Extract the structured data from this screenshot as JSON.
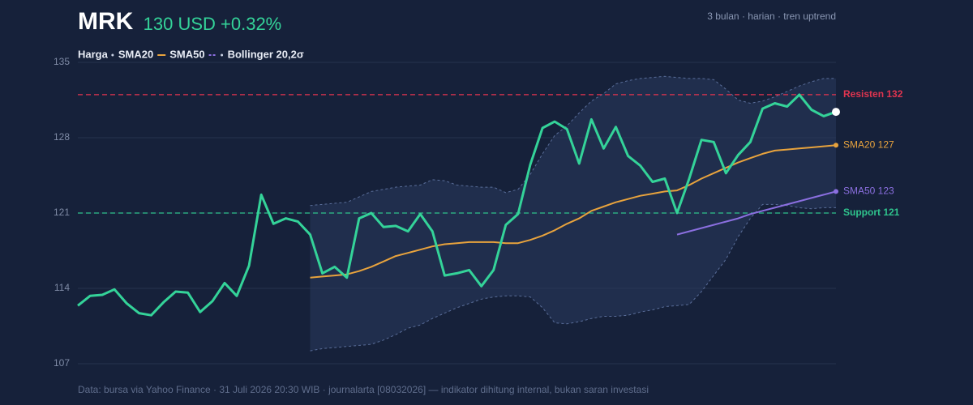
{
  "chart_data": {
    "type": "line",
    "title": "MRK",
    "subtitle": "130 USD +0.32%",
    "note": "3 bulan · harian · tren uptrend",
    "footer": "Data: bursa via Yahoo Finance · 31 Juli 2026 20:30 WIB · journalarta [08032026] — indikator dihitung internal, bukan saran investasi",
    "ylim": [
      107,
      135
    ],
    "yticks": [
      107,
      114,
      121,
      128,
      135
    ],
    "grid": true,
    "series": [
      {
        "name": "Harga",
        "color": "#34d399",
        "values": [
          112.4,
          113.3,
          113.4,
          113.9,
          112.6,
          111.7,
          111.5,
          112.7,
          113.7,
          113.6,
          111.8,
          112.8,
          114.5,
          113.3,
          116.1,
          122.7,
          120.0,
          120.5,
          120.2,
          119.0,
          115.4,
          116.0,
          115.0,
          120.5,
          121.0,
          119.7,
          119.8,
          119.3,
          120.9,
          119.3,
          115.2,
          115.4,
          115.7,
          114.2,
          115.7,
          119.9,
          120.9,
          125.5,
          128.9,
          129.5,
          128.8,
          125.6,
          129.7,
          127.0,
          129.0,
          126.3,
          125.4,
          123.9,
          124.2,
          121.0,
          124.2,
          127.8,
          127.6,
          124.7,
          126.4,
          127.6,
          130.7,
          131.2,
          130.9,
          132.0,
          130.6,
          130.0,
          130.4
        ]
      },
      {
        "name": "SMA20",
        "color": "#e8a33d",
        "end_label": "SMA20 127",
        "values": [
          null,
          null,
          null,
          null,
          null,
          null,
          null,
          null,
          null,
          null,
          null,
          null,
          null,
          null,
          null,
          null,
          null,
          null,
          null,
          115.0,
          115.1,
          115.2,
          115.3,
          115.6,
          116.0,
          116.5,
          117.0,
          117.3,
          117.6,
          117.9,
          118.1,
          118.2,
          118.3,
          118.3,
          118.3,
          118.2,
          118.2,
          118.5,
          118.9,
          119.4,
          120.0,
          120.5,
          121.2,
          121.6,
          122.0,
          122.3,
          122.6,
          122.8,
          123.0,
          123.1,
          123.6,
          124.2,
          124.7,
          125.2,
          125.7,
          126.1,
          126.5,
          126.8,
          126.9,
          127.0,
          127.1,
          127.2,
          127.3
        ]
      },
      {
        "name": "SMA50",
        "color": "#8b6fe0",
        "end_label": "SMA50 123",
        "values": [
          null,
          null,
          null,
          null,
          null,
          null,
          null,
          null,
          null,
          null,
          null,
          null,
          null,
          null,
          null,
          null,
          null,
          null,
          null,
          null,
          null,
          null,
          null,
          null,
          null,
          null,
          null,
          null,
          null,
          null,
          null,
          null,
          null,
          null,
          null,
          null,
          null,
          null,
          null,
          null,
          null,
          null,
          null,
          null,
          null,
          null,
          null,
          null,
          null,
          119.0,
          119.3,
          119.6,
          119.9,
          120.2,
          120.5,
          120.9,
          121.2,
          121.5,
          121.8,
          122.1,
          122.4,
          122.7,
          123.0
        ]
      }
    ],
    "bollinger": {
      "name": "Bollinger 20,2σ",
      "color": "#5a6e9a",
      "upper": [
        null,
        null,
        null,
        null,
        null,
        null,
        null,
        null,
        null,
        null,
        null,
        null,
        null,
        null,
        null,
        null,
        null,
        null,
        null,
        121.7,
        121.8,
        121.9,
        122.0,
        122.5,
        123.0,
        123.2,
        123.4,
        123.5,
        123.6,
        124.1,
        124.0,
        123.6,
        123.5,
        123.4,
        123.4,
        122.9,
        123.2,
        124.6,
        126.5,
        128.2,
        129.1,
        130.3,
        131.4,
        132.1,
        133.0,
        133.3,
        133.5,
        133.6,
        133.7,
        133.6,
        133.5,
        133.5,
        133.4,
        132.5,
        131.5,
        131.2,
        131.4,
        131.8,
        132.3,
        132.8,
        133.2,
        133.5,
        133.5
      ],
      "lower": [
        null,
        null,
        null,
        null,
        null,
        null,
        null,
        null,
        null,
        null,
        null,
        null,
        null,
        null,
        null,
        null,
        null,
        null,
        null,
        108.2,
        108.4,
        108.5,
        108.6,
        108.7,
        108.8,
        109.2,
        109.7,
        110.3,
        110.6,
        111.2,
        111.7,
        112.2,
        112.6,
        113.0,
        113.2,
        113.3,
        113.3,
        113.2,
        112.2,
        110.8,
        110.7,
        110.9,
        111.2,
        111.4,
        111.4,
        111.5,
        111.8,
        112.0,
        112.3,
        112.4,
        112.5,
        113.7,
        115.2,
        116.7,
        118.8,
        120.5,
        121.8,
        121.8,
        121.7,
        121.5,
        121.4,
        121.5,
        121.5
      ]
    },
    "levels": [
      {
        "value": 132,
        "label": "Resisten 132",
        "color": "#e0344f"
      },
      {
        "value": 121,
        "label": "Support 121",
        "color": "#2fc48d"
      }
    ]
  }
}
